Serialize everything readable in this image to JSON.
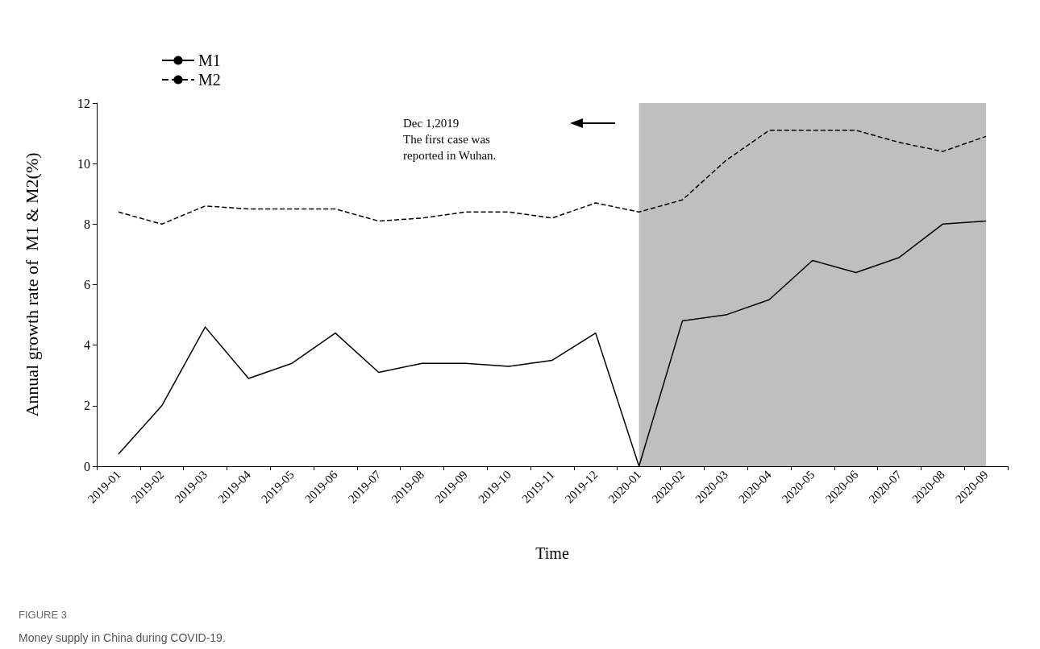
{
  "chart_data": {
    "type": "line",
    "title": "FIGURE 3",
    "subtitle": "Money supply in China during COVID-19.",
    "xlabel": "Time",
    "ylabel": "Annual growth rate of  M1 & M2(%)",
    "categories": [
      "2019-01",
      "2019-02",
      "2019-03",
      "2019-04",
      "2019-05",
      "2019-06",
      "2019-07",
      "2019-08",
      "2019-09",
      "2019-10",
      "2019-11",
      "2019-12",
      "2020-01",
      "2020-02",
      "2020-03",
      "2020-04",
      "2020-05",
      "2020-06",
      "2020-07",
      "2020-08",
      "2020-09"
    ],
    "series": [
      {
        "name": "M1",
        "color": "#000000",
        "line_style": "solid",
        "values": [
          0.4,
          2.0,
          4.6,
          2.9,
          3.4,
          4.4,
          3.1,
          3.4,
          3.4,
          3.3,
          3.5,
          4.4,
          0.0,
          4.8,
          5.0,
          5.5,
          6.8,
          6.4,
          6.9,
          8.0,
          8.1
        ]
      },
      {
        "name": "M2",
        "color": "#000000",
        "line_style": "dashed",
        "values": [
          8.4,
          8.0,
          8.6,
          8.5,
          8.5,
          8.5,
          8.1,
          8.2,
          8.4,
          8.4,
          8.2,
          8.7,
          8.4,
          8.8,
          10.1,
          11.1,
          11.1,
          11.1,
          10.7,
          10.4,
          10.9
        ]
      }
    ],
    "ylim": [
      0,
      12
    ],
    "yticks": [
      0,
      2,
      4,
      6,
      8,
      10,
      12
    ],
    "grid": false,
    "legend": "top left",
    "marker": "none",
    "bands": [
      {
        "axis": "x",
        "from": "2020-01",
        "to": "2020-09",
        "color": "#bfbfbf"
      }
    ],
    "annotations": [
      "Dec 1,2019\nThe first case was\nreported in Wuhan."
    ]
  }
}
